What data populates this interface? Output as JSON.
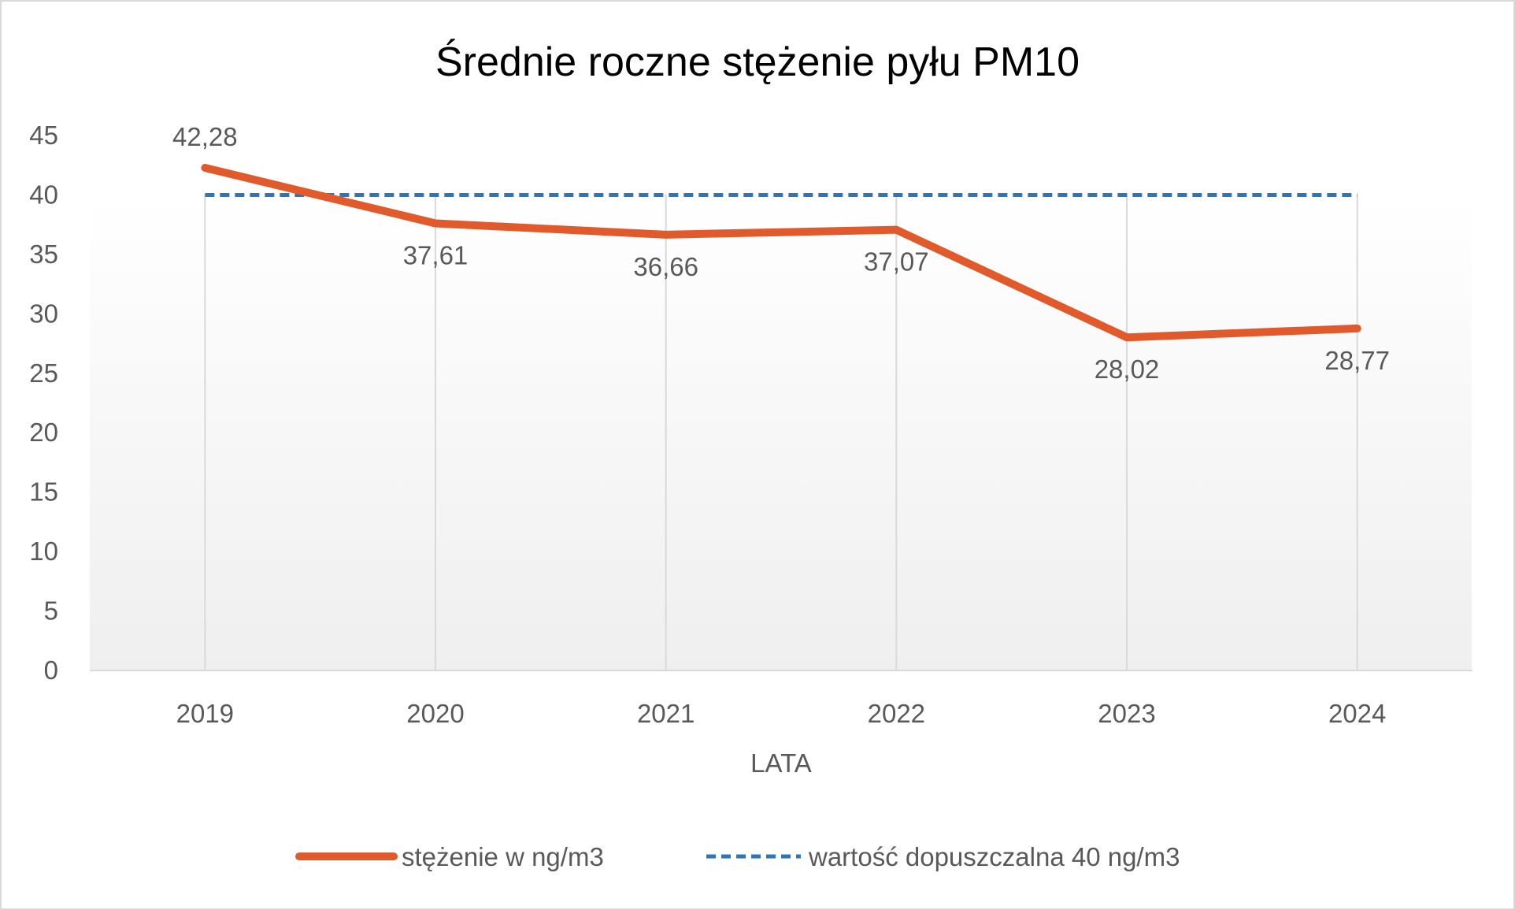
{
  "chart_data": {
    "type": "line",
    "title": "Średnie roczne stężenie pyłu PM10",
    "xlabel": "LATA",
    "ylabel": "",
    "categories": [
      "2019",
      "2020",
      "2021",
      "2022",
      "2023",
      "2024"
    ],
    "ylim": [
      0,
      45
    ],
    "yticks": [
      0,
      5,
      10,
      15,
      20,
      25,
      30,
      35,
      40,
      45
    ],
    "grid": "vertical",
    "legend_position": "bottom",
    "series": [
      {
        "name": "stężenie w ng/m3",
        "values": [
          42.28,
          37.61,
          36.66,
          37.07,
          28.02,
          28.77
        ],
        "labels": [
          "42,28",
          "37,61",
          "36,66",
          "37,07",
          "28,02",
          "28,77"
        ],
        "color": "#e05a2b",
        "style": "solid"
      },
      {
        "name": "wartość dopuszczalna 40 ng/m3",
        "values": [
          40,
          40,
          40,
          40,
          40,
          40
        ],
        "color": "#2e75b6",
        "style": "dashed"
      }
    ]
  }
}
